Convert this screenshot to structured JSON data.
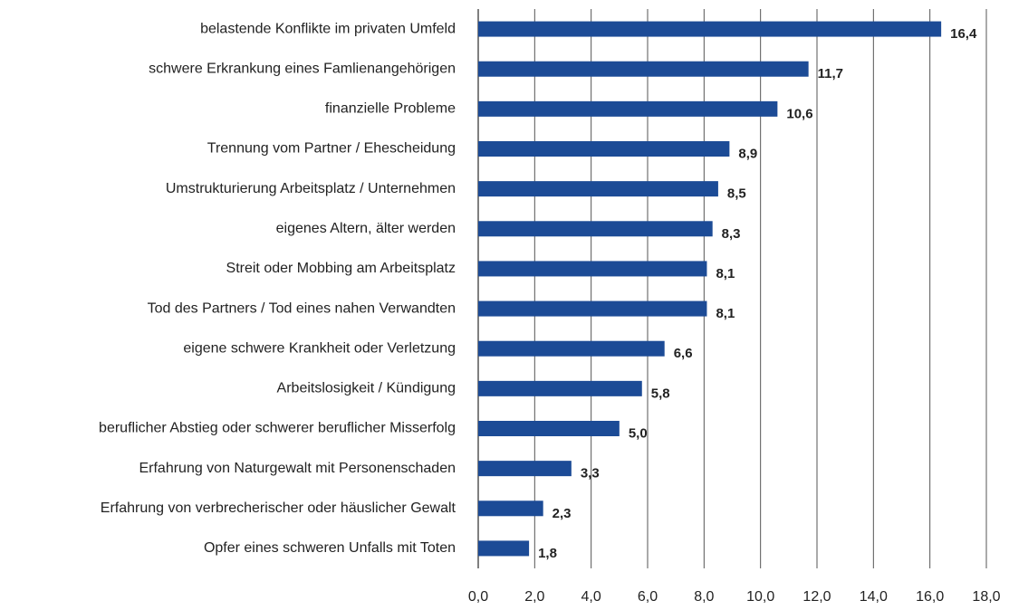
{
  "chart_data": {
    "type": "bar",
    "orientation": "horizontal",
    "categories": [
      "belastende Konflikte im privaten Umfeld",
      "schwere Erkrankung eines Famlienangehörigen",
      "finanzielle Probleme",
      "Trennung vom Partner / Ehescheidung",
      "Umstrukturierung Arbeitsplatz / Unternehmen",
      "eigenes Altern, älter werden",
      "Streit oder Mobbing am Arbeitsplatz",
      "Tod des Partners / Tod eines nahen Verwandten",
      "eigene schwere Krankheit oder Verletzung",
      "Arbeitslosigkeit / Kündigung",
      "beruflicher Abstieg oder schwerer beruflicher Misserfolg",
      "Erfahrung von Naturgewalt mit Personenschaden",
      "Erfahrung von verbrecherischer oder häuslicher Gewalt",
      "Opfer eines schweren Unfalls mit Toten"
    ],
    "values": [
      16.4,
      11.7,
      10.6,
      8.9,
      8.5,
      8.3,
      8.1,
      8.1,
      6.6,
      5.8,
      5.0,
      3.3,
      2.3,
      1.8
    ],
    "value_labels": [
      "16,4",
      "11,7",
      "10,6",
      "8,9",
      "8,5",
      "8,3",
      "8,1",
      "8,1",
      "6,6",
      "5,8",
      "5,0",
      "3,3",
      "2,3",
      "1,8"
    ],
    "color": "#1c4b96",
    "xlim": [
      0,
      18
    ],
    "xticks": [
      {
        "value": 0,
        "label": "0,0"
      },
      {
        "value": 2,
        "label": "2,0"
      },
      {
        "value": 4,
        "label": "4,0"
      },
      {
        "value": 6,
        "label": "6,0"
      },
      {
        "value": 8,
        "label": "8,0"
      },
      {
        "value": 10,
        "label": "10,0"
      },
      {
        "value": 12,
        "label": "12,0"
      },
      {
        "value": 14,
        "label": "14,0"
      },
      {
        "value": 16,
        "label": "16,0"
      },
      {
        "value": 18,
        "label": "18,0"
      }
    ],
    "grid": true
  }
}
